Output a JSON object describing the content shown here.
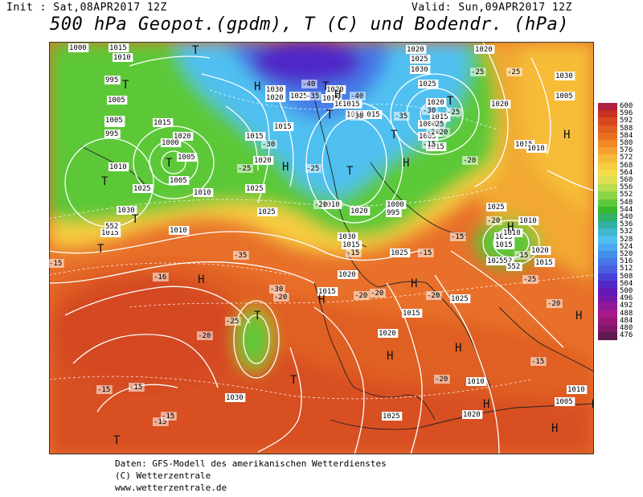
{
  "header": {
    "init": "Init : Sat,08APR2017 12Z",
    "valid": "Valid: Sun,09APR2017 12Z",
    "title": "500 hPa Geopot.(gpdm), T (C) und Bodendr. (hPa)"
  },
  "legend": {
    "values": [
      "600",
      "596",
      "592",
      "588",
      "584",
      "580",
      "576",
      "572",
      "568",
      "564",
      "560",
      "556",
      "552",
      "548",
      "544",
      "540",
      "536",
      "532",
      "528",
      "524",
      "520",
      "516",
      "512",
      "508",
      "504",
      "500",
      "496",
      "492",
      "488",
      "484",
      "480",
      "476"
    ],
    "colors": [
      "#b02040",
      "#c83020",
      "#d84820",
      "#e05e20",
      "#e87020",
      "#f08828",
      "#f5a030",
      "#f6b838",
      "#f7cc40",
      "#f2dc48",
      "#dde050",
      "#b8dc50",
      "#8cd448",
      "#5cc838",
      "#38b830",
      "#30b068",
      "#30b0a0",
      "#40b8d0",
      "#50c0f0",
      "#48a8f0",
      "#4090e8",
      "#4478e8",
      "#4860e0",
      "#4840d8",
      "#5028c8",
      "#6018b8",
      "#7818a8",
      "#901898",
      "#a81888",
      "#981878",
      "#801868",
      "#601850"
    ]
  },
  "map": {
    "labels": {
      "isobars": [
        "1000",
        "1015",
        "1010",
        "995",
        "1005",
        "1000",
        "995",
        "1005",
        "1010",
        "1015",
        "1020",
        "1025",
        "1030",
        "1015",
        "1010",
        "1005",
        "1000",
        "1005",
        "1010",
        "1015",
        "1025",
        "1030",
        "1020",
        "1015",
        "1020",
        "1025",
        "1015",
        "1030",
        "1020",
        "1010",
        "1015",
        "1020",
        "1015",
        "1025",
        "1005",
        "1015",
        "1010",
        "1020",
        "1025",
        "1030",
        "1025",
        "1020",
        "1015",
        "1020",
        "1025",
        "1030",
        "1005",
        "1015",
        "1010",
        "1000",
        "1005",
        "1015",
        "1020",
        "1015",
        "1025",
        "1010",
        "1020",
        "1015",
        "1020",
        "1010",
        "1020",
        "1015",
        "1020",
        "1025",
        "1015",
        "1010",
        "1005",
        "1000",
        "995",
        "1010",
        "1015",
        "1020",
        "1025",
        "1030"
      ],
      "temperatures": [
        "-40",
        "-35",
        "-30",
        "-25",
        "-20",
        "-15",
        "-40",
        "-35",
        "-30",
        "-25",
        "-20",
        "-15",
        "-20",
        "-25",
        "-30",
        "-35",
        "-16",
        "-15",
        "-20",
        "-25",
        "-20",
        "-20",
        "-15",
        "-20",
        "-15",
        "-20",
        "-15",
        "-20",
        "-15",
        "-25",
        "-25",
        "-20",
        "-20",
        "-15",
        "-15",
        "-15",
        "-15",
        "-25",
        "-20",
        "-30",
        "-25"
      ],
      "pressure_centers": [
        "T",
        "T",
        "T",
        "T",
        "T",
        "T",
        "T",
        "T",
        "T",
        "T",
        "T",
        "T",
        "T",
        "T",
        "H",
        "H",
        "H",
        "H",
        "H",
        "H",
        "H",
        "H",
        "H",
        "H",
        "H",
        "H",
        "H",
        "H",
        "H"
      ],
      "heights": [
        "552",
        "552",
        "552"
      ]
    }
  },
  "footer": {
    "line1": "Daten: GFS-Modell des amerikanischen Wetterdienstes",
    "line2": "(C) Wetterzentrale",
    "line3": "www.wetterzentrale.de"
  }
}
